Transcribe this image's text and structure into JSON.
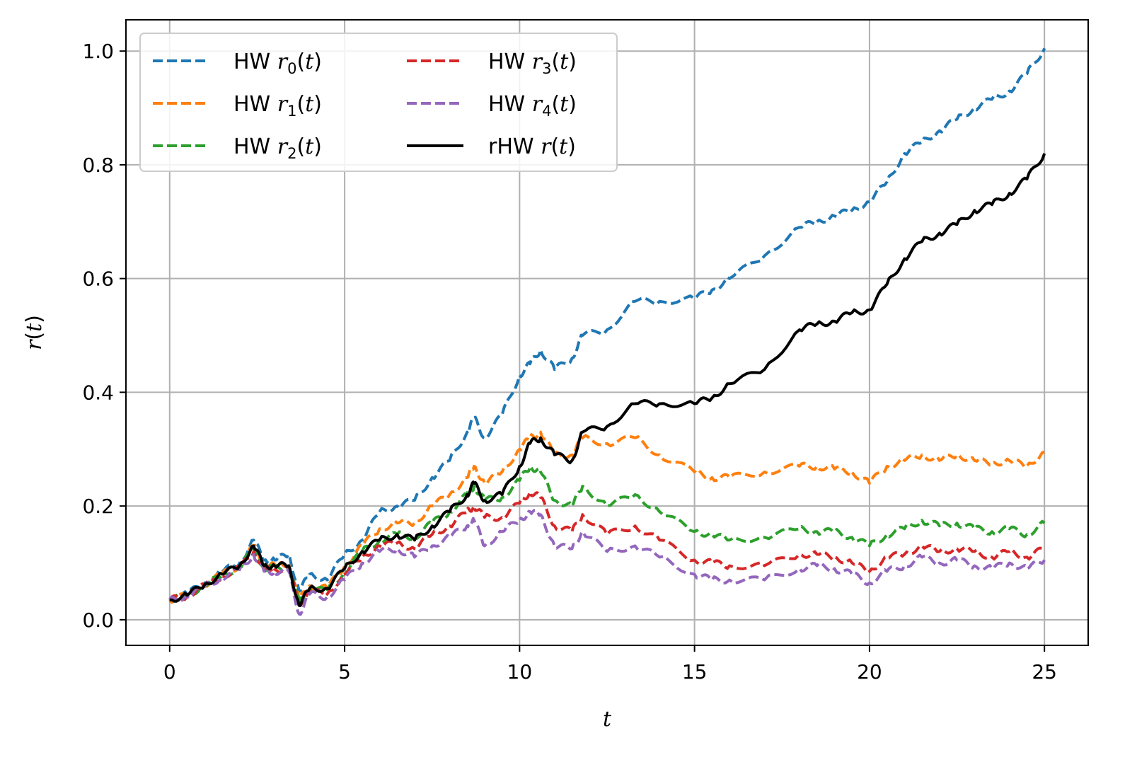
{
  "chart_data": {
    "type": "line",
    "xlabel": "t",
    "ylabel": "r(t)",
    "xlim": [
      -1.25,
      26.25
    ],
    "ylim": [
      -0.045,
      1.055
    ],
    "x_ticks": [
      0,
      5,
      10,
      15,
      20,
      25
    ],
    "y_ticks": [
      0.0,
      0.2,
      0.4,
      0.6,
      0.8,
      1.0
    ],
    "x_tick_labels": [
      "0",
      "5",
      "10",
      "15",
      "20",
      "25"
    ],
    "y_tick_labels": [
      "0.0",
      "0.2",
      "0.4",
      "0.6",
      "0.8",
      "1.0"
    ],
    "grid": true,
    "legend_position": "top-left",
    "legend_columns": 2,
    "x": [
      0,
      0.5,
      1,
      1.5,
      2,
      2.4,
      2.7,
      3,
      3.4,
      3.7,
      4,
      4.5,
      5,
      5.5,
      6,
      6.5,
      7,
      7.5,
      8,
      8.5,
      8.7,
      9,
      9.5,
      10,
      10.3,
      10.6,
      11,
      11.5,
      11.8,
      12.5,
      13.3,
      14,
      15,
      15.5,
      16,
      17,
      18,
      18.5,
      19,
      19.5,
      20,
      20.5,
      21,
      21.5,
      22,
      22.5,
      23,
      23.5,
      24,
      24.5,
      25
    ],
    "series": [
      {
        "name": "HW r₀(t)",
        "color": "#1f77b4",
        "dash": "dashed",
        "values": [
          0.035,
          0.045,
          0.065,
          0.085,
          0.1,
          0.14,
          0.105,
          0.105,
          0.115,
          0.05,
          0.08,
          0.07,
          0.115,
          0.14,
          0.19,
          0.2,
          0.21,
          0.25,
          0.28,
          0.33,
          0.355,
          0.32,
          0.36,
          0.43,
          0.45,
          0.475,
          0.44,
          0.46,
          0.5,
          0.51,
          0.56,
          0.56,
          0.565,
          0.58,
          0.6,
          0.64,
          0.69,
          0.7,
          0.71,
          0.72,
          0.735,
          0.77,
          0.82,
          0.84,
          0.86,
          0.88,
          0.9,
          0.915,
          0.93,
          0.96,
          1.005
        ]
      },
      {
        "name": "HW r₁(t)",
        "color": "#ff7f0e",
        "dash": "dashed",
        "values": [
          0.035,
          0.043,
          0.062,
          0.08,
          0.095,
          0.13,
          0.095,
          0.095,
          0.1,
          0.035,
          0.06,
          0.055,
          0.095,
          0.13,
          0.16,
          0.17,
          0.17,
          0.2,
          0.22,
          0.25,
          0.27,
          0.24,
          0.26,
          0.3,
          0.32,
          0.33,
          0.29,
          0.29,
          0.32,
          0.31,
          0.32,
          0.29,
          0.26,
          0.25,
          0.25,
          0.26,
          0.27,
          0.27,
          0.265,
          0.26,
          0.24,
          0.27,
          0.28,
          0.29,
          0.28,
          0.29,
          0.28,
          0.275,
          0.28,
          0.27,
          0.295
        ]
      },
      {
        "name": "HW r₂(t)",
        "color": "#2ca02c",
        "dash": "dashed",
        "values": [
          0.035,
          0.043,
          0.06,
          0.078,
          0.092,
          0.125,
          0.09,
          0.09,
          0.095,
          0.03,
          0.055,
          0.05,
          0.085,
          0.12,
          0.14,
          0.15,
          0.145,
          0.17,
          0.19,
          0.22,
          0.235,
          0.21,
          0.215,
          0.245,
          0.27,
          0.26,
          0.21,
          0.2,
          0.235,
          0.2,
          0.22,
          0.19,
          0.155,
          0.15,
          0.14,
          0.145,
          0.16,
          0.155,
          0.155,
          0.145,
          0.13,
          0.15,
          0.16,
          0.175,
          0.165,
          0.17,
          0.16,
          0.155,
          0.16,
          0.15,
          0.17
        ]
      },
      {
        "name": "HW r₃(t)",
        "color": "#d62728",
        "dash": "dashed",
        "values": [
          0.035,
          0.042,
          0.06,
          0.077,
          0.09,
          0.12,
          0.088,
          0.088,
          0.09,
          0.025,
          0.05,
          0.045,
          0.08,
          0.11,
          0.13,
          0.135,
          0.125,
          0.15,
          0.165,
          0.19,
          0.2,
          0.18,
          0.18,
          0.205,
          0.225,
          0.215,
          0.165,
          0.155,
          0.185,
          0.15,
          0.165,
          0.14,
          0.105,
          0.1,
          0.095,
          0.095,
          0.115,
          0.115,
          0.11,
          0.1,
          0.085,
          0.11,
          0.115,
          0.13,
          0.12,
          0.125,
          0.12,
          0.11,
          0.12,
          0.11,
          0.125
        ]
      },
      {
        "name": "HW r₄(t)",
        "color": "#9467bd",
        "dash": "dashed",
        "values": [
          0.035,
          0.041,
          0.058,
          0.075,
          0.088,
          0.115,
          0.085,
          0.085,
          0.085,
          0.01,
          0.045,
          0.04,
          0.07,
          0.1,
          0.12,
          0.125,
          0.11,
          0.13,
          0.145,
          0.165,
          0.175,
          0.13,
          0.155,
          0.175,
          0.19,
          0.185,
          0.13,
          0.125,
          0.155,
          0.12,
          0.13,
          0.11,
          0.08,
          0.07,
          0.07,
          0.07,
          0.09,
          0.095,
          0.09,
          0.08,
          0.065,
          0.085,
          0.095,
          0.11,
          0.1,
          0.105,
          0.095,
          0.09,
          0.1,
          0.09,
          0.105
        ]
      },
      {
        "name": "rHW r(t)",
        "color": "#000000",
        "dash": "solid",
        "values": [
          0.035,
          0.043,
          0.062,
          0.08,
          0.095,
          0.13,
          0.095,
          0.095,
          0.095,
          0.025,
          0.055,
          0.055,
          0.09,
          0.12,
          0.14,
          0.15,
          0.14,
          0.165,
          0.19,
          0.22,
          0.24,
          0.21,
          0.22,
          0.27,
          0.31,
          0.32,
          0.29,
          0.28,
          0.33,
          0.34,
          0.38,
          0.38,
          0.38,
          0.39,
          0.415,
          0.44,
          0.51,
          0.52,
          0.525,
          0.54,
          0.545,
          0.59,
          0.635,
          0.665,
          0.68,
          0.695,
          0.72,
          0.73,
          0.75,
          0.775,
          0.82
        ]
      }
    ]
  },
  "legend": {
    "items": [
      {
        "prefix": "HW ",
        "sym": "r",
        "sub": "0",
        "suffix": "(",
        "arg": "t",
        "close": ")"
      },
      {
        "prefix": "HW ",
        "sym": "r",
        "sub": "1",
        "suffix": "(",
        "arg": "t",
        "close": ")"
      },
      {
        "prefix": "HW ",
        "sym": "r",
        "sub": "2",
        "suffix": "(",
        "arg": "t",
        "close": ")"
      },
      {
        "prefix": "HW ",
        "sym": "r",
        "sub": "3",
        "suffix": "(",
        "arg": "t",
        "close": ")"
      },
      {
        "prefix": "HW ",
        "sym": "r",
        "sub": "4",
        "suffix": "(",
        "arg": "t",
        "close": ")"
      },
      {
        "prefix": "rHW ",
        "sym": "r",
        "sub": "",
        "suffix": "(",
        "arg": "t",
        "close": ")"
      }
    ]
  }
}
